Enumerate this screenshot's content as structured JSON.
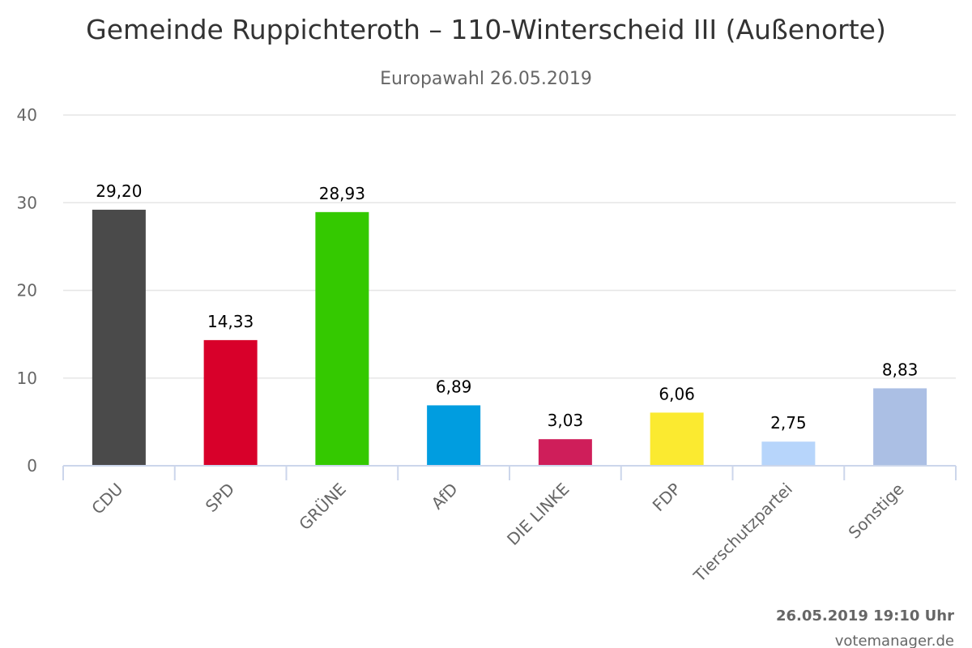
{
  "chart_data": {
    "type": "bar",
    "title": "Gemeinde Ruppichteroth – 110-Winterscheid III (Außenorte)",
    "subtitle": "Europawahl 26.05.2019",
    "categories": [
      "CDU",
      "SPD",
      "GRÜNE",
      "AfD",
      "DIE LINKE",
      "FDP",
      "Tierschutzpartei",
      "Sonstige"
    ],
    "values": [
      29.2,
      14.33,
      28.93,
      6.89,
      3.03,
      6.06,
      2.75,
      8.83
    ],
    "value_labels": [
      "29,20",
      "14,33",
      "28,93",
      "6,89",
      "3,03",
      "6,06",
      "2,75",
      "8,83"
    ],
    "colors": [
      "#4a4a4a",
      "#d8002a",
      "#34c900",
      "#009de0",
      "#cf1e5a",
      "#fbea30",
      "#b7d5fb",
      "#abbfe4"
    ],
    "ylim": [
      0,
      40
    ],
    "yticks": [
      0,
      10,
      20,
      30,
      40
    ],
    "grid": true,
    "xlabel": "",
    "ylabel": ""
  },
  "footer": {
    "timestamp": "26.05.2019 19:10 Uhr",
    "source": "votemanager.de"
  }
}
